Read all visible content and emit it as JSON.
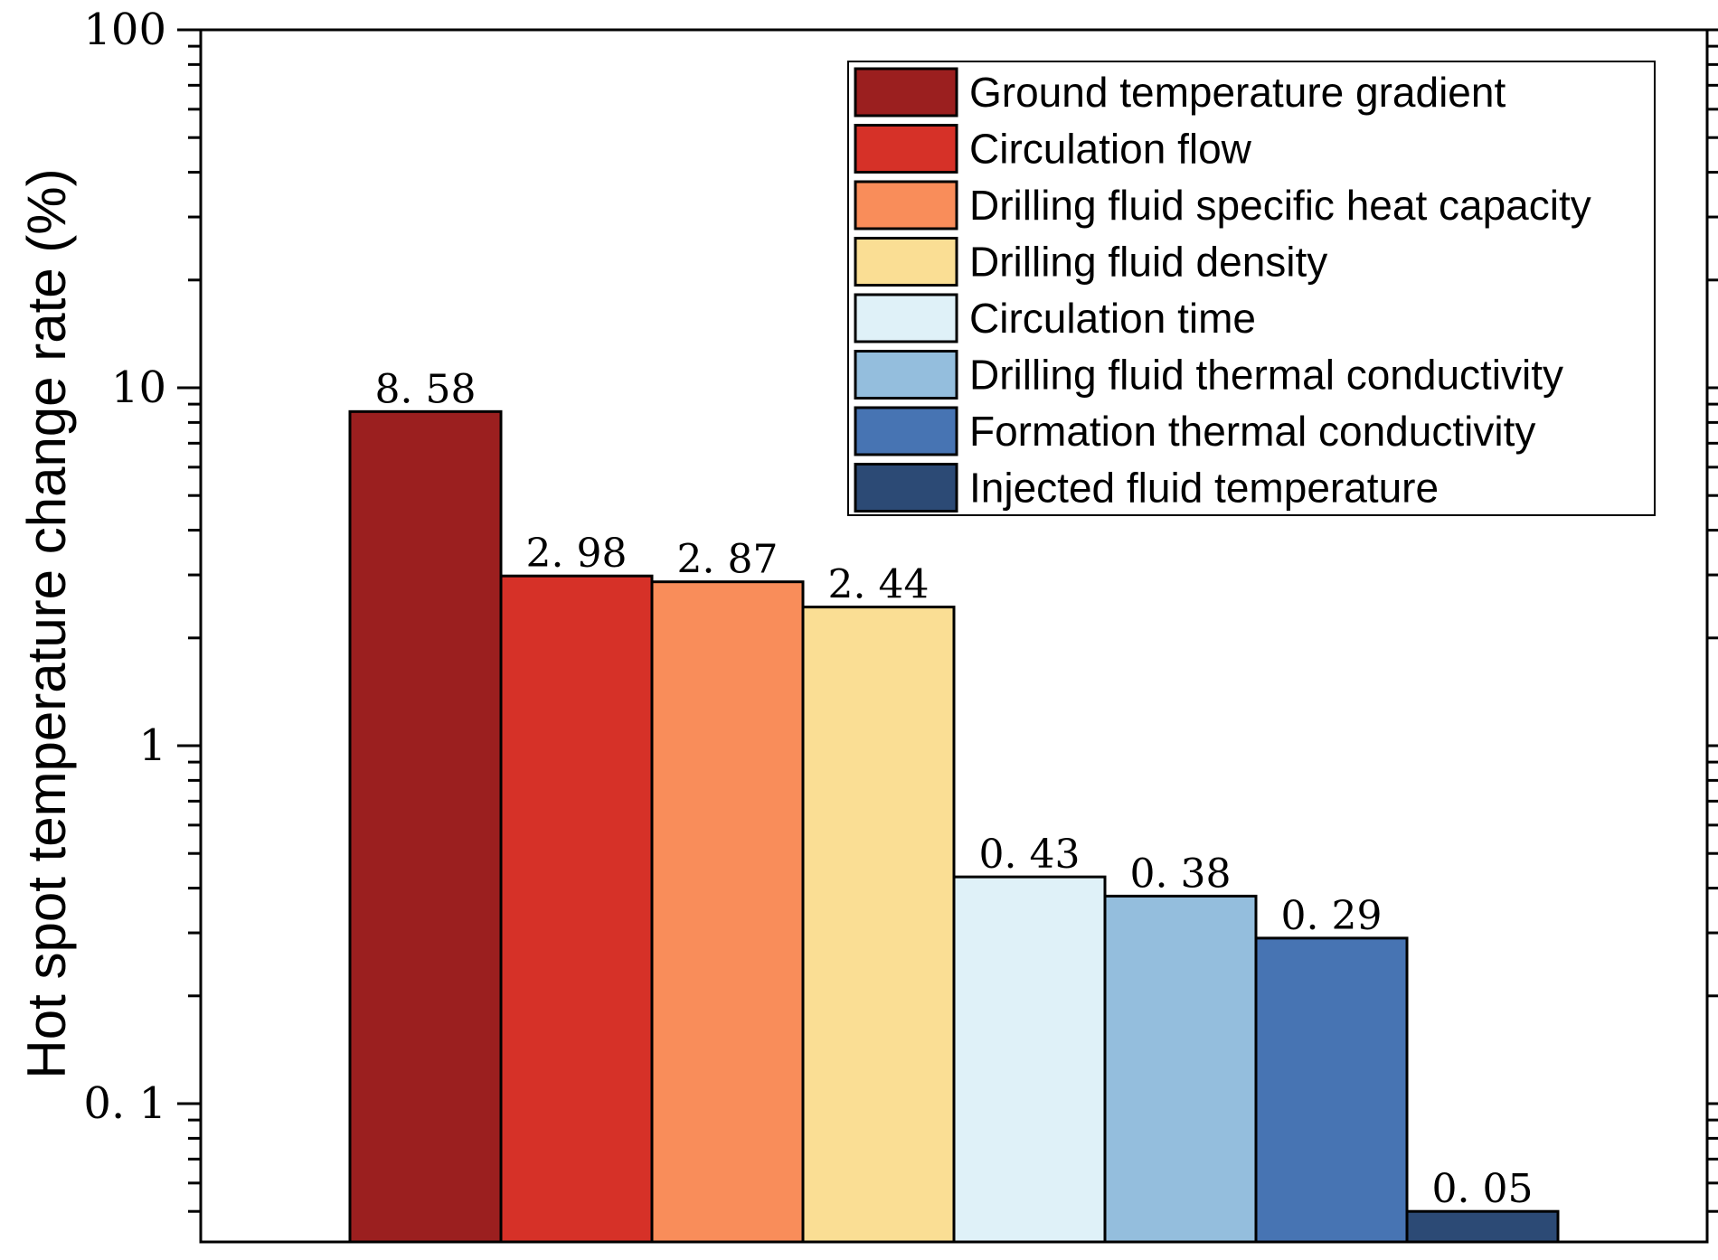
{
  "chart_data": {
    "type": "bar",
    "scale": "log",
    "title": "",
    "xlabel": "",
    "ylabel": "Hot spot temperature change rate (%)",
    "ylim": [
      0.05,
      100
    ],
    "yticks": [
      {
        "value": 100,
        "label": "100"
      },
      {
        "value": 10,
        "label": "10"
      },
      {
        "value": 1,
        "label": "1"
      },
      {
        "value": 0.1,
        "label": "0. 1"
      }
    ],
    "categories": [
      "Ground temperature gradient",
      "Circulation flow",
      "Drilling fluid specific heat capacity",
      "Drilling fluid density",
      "Circulation time",
      "Drilling fluid thermal conductivity",
      "Formation thermal conductivity",
      "Injected fluid temperature"
    ],
    "values": [
      8.58,
      2.98,
      2.87,
      2.44,
      0.43,
      0.38,
      0.29,
      0.05
    ],
    "value_labels": [
      "8. 58",
      "2. 98",
      "2. 87",
      "2. 44",
      "0. 43",
      "0. 38",
      "0. 29",
      "0. 05"
    ],
    "colors": [
      "#9B1F1F",
      "#D63128",
      "#F98D5A",
      "#FADE94",
      "#DFF1F8",
      "#94BEDD",
      "#4774B3",
      "#2C4A75"
    ],
    "legend": "top-right",
    "grid": false
  }
}
